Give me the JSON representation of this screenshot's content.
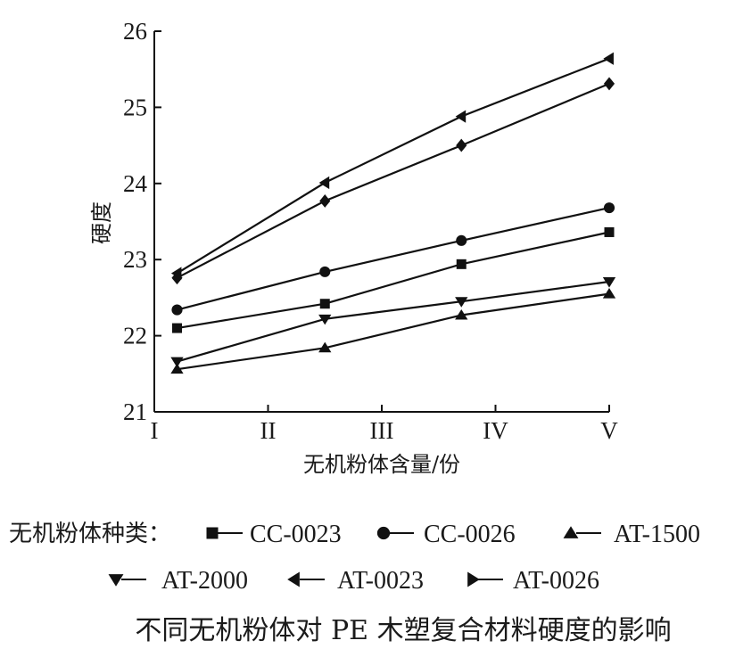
{
  "chart_data": {
    "type": "line",
    "xlabel": "无机粉体含量/份",
    "ylabel": "硬度",
    "categories": [
      "I",
      "II",
      "III",
      "IV",
      "V"
    ],
    "ylim": [
      21,
      26
    ],
    "yticks": [
      21,
      22,
      23,
      24,
      25,
      26
    ],
    "grid": false,
    "legend_prefix": "无机粉体种类：",
    "caption": "不同无机粉体对 PE 木塑复合材料硬度的影响",
    "series": [
      {
        "name": "CC-0023",
        "marker": "square",
        "x": [
          1.2,
          2.5,
          3.7,
          5.0
        ],
        "values": [
          22.1,
          22.42,
          22.94,
          23.36
        ]
      },
      {
        "name": "CC-0026",
        "marker": "circle",
        "x": [
          1.2,
          2.5,
          3.7,
          5.0
        ],
        "values": [
          22.34,
          22.84,
          23.25,
          23.68
        ]
      },
      {
        "name": "AT-1500",
        "marker": "triangle-up",
        "x": [
          1.2,
          2.5,
          3.7,
          5.0
        ],
        "values": [
          21.56,
          21.84,
          22.27,
          22.55
        ]
      },
      {
        "name": "AT-2000",
        "marker": "triangle-down",
        "x": [
          1.2,
          2.5,
          3.7,
          5.0
        ],
        "values": [
          21.66,
          22.22,
          22.45,
          22.71
        ]
      },
      {
        "name": "AT-0023",
        "marker": "triangle-left",
        "x": [
          1.2,
          2.5,
          3.7,
          5.0
        ],
        "values": [
          22.82,
          24.01,
          24.88,
          25.64
        ]
      },
      {
        "name": "AT-0026",
        "marker": "diamond",
        "x": [
          1.2,
          2.5,
          3.7,
          5.0
        ],
        "values": [
          22.76,
          23.77,
          24.5,
          25.31
        ]
      }
    ]
  }
}
